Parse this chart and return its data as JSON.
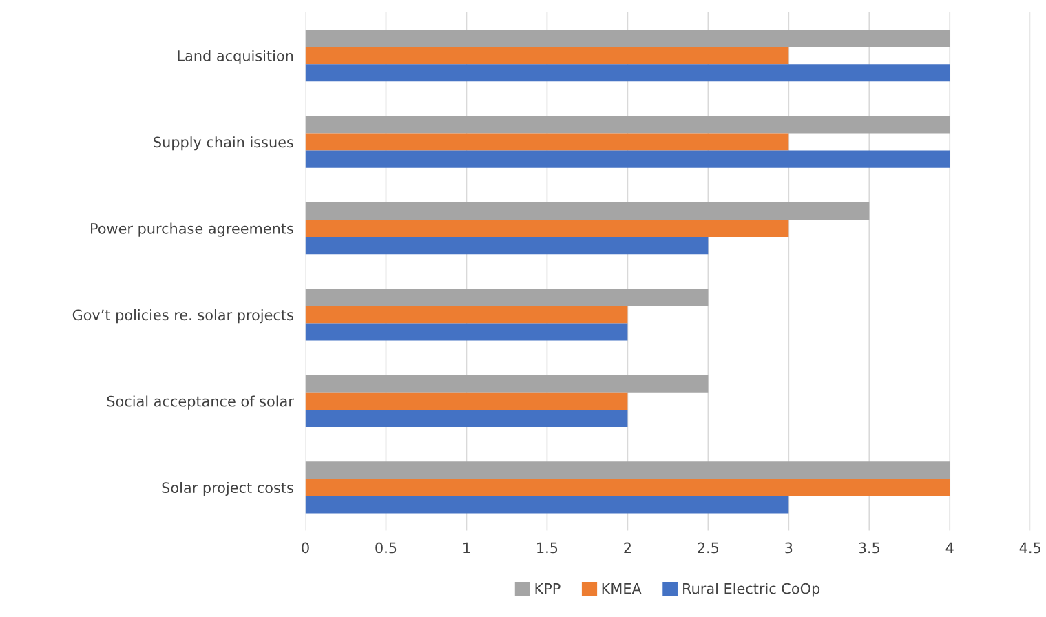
{
  "chart_data": {
    "type": "bar",
    "orientation": "horizontal",
    "categories": [
      "Land acquisition",
      "Supply chain issues",
      "Power purchase agreements",
      "Gov’t policies re. solar projects",
      "Social acceptance of solar",
      "Solar project costs"
    ],
    "series": [
      {
        "name": "KPP",
        "color": "#a5a5a5",
        "values": [
          4,
          4,
          3.5,
          2.5,
          2.5,
          4
        ]
      },
      {
        "name": "KMEA",
        "color": "#ed7d31",
        "values": [
          3,
          3,
          3,
          2,
          2,
          4
        ]
      },
      {
        "name": "Rural Electric CoOp",
        "color": "#4472c4",
        "values": [
          4,
          4,
          2.5,
          2,
          2,
          3
        ]
      }
    ],
    "xlim": [
      0,
      4.5
    ],
    "xticks": [
      0,
      0.5,
      1,
      1.5,
      2,
      2.5,
      3,
      3.5,
      4,
      4.5
    ],
    "grid": "x",
    "legend": "bottom"
  }
}
